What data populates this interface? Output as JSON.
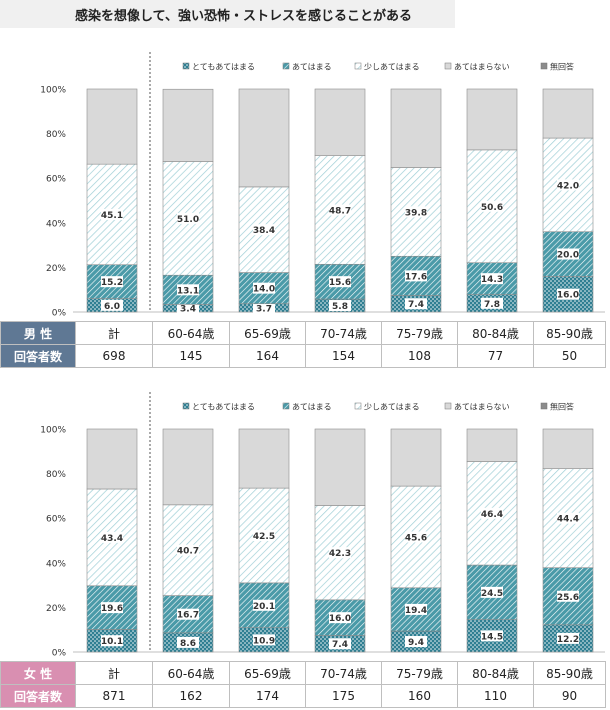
{
  "title": "感染を想像して、強い恐怖・ストレスを感じることがある",
  "legend": [
    {
      "label": "とてもあてはまる",
      "color": "#2f7f92",
      "pattern": "dots"
    },
    {
      "label": "あてはまる",
      "color": "#4a9aa8",
      "pattern": "dense-hatch"
    },
    {
      "label": "少しあてはまる",
      "color": "#9fcfd6",
      "pattern": "light-hatch"
    },
    {
      "label": "あてはまらない",
      "color": "#d9d9d9",
      "pattern": "solid"
    },
    {
      "label": "無回答",
      "color": "#8c8c8c",
      "pattern": "solid"
    }
  ],
  "chart_data": [
    {
      "type": "bar",
      "stacked": true,
      "group": "男 性",
      "categories": [
        "計",
        "60-64歳",
        "65-69歳",
        "70-74歳",
        "75-79歳",
        "80-84歳",
        "85-90歳"
      ],
      "y_ticks": [
        "0%",
        "20%",
        "40%",
        "60%",
        "80%",
        "100%"
      ],
      "ylim": [
        0,
        100
      ],
      "series": [
        {
          "name": "とてもあてはまる",
          "values": [
            6.0,
            3.4,
            3.7,
            5.8,
            7.4,
            7.8,
            16.0
          ]
        },
        {
          "name": "あてはまる",
          "values": [
            15.2,
            13.1,
            14.0,
            15.6,
            17.6,
            14.3,
            20.0
          ]
        },
        {
          "name": "少しあてはまる",
          "values": [
            45.1,
            51.0,
            38.4,
            48.7,
            39.8,
            50.6,
            42.0
          ]
        },
        {
          "name": "あてはまらない",
          "values": [
            33.7,
            32.4,
            43.9,
            29.9,
            35.2,
            27.3,
            22.0
          ]
        },
        {
          "name": "無回答",
          "values": [
            0,
            0,
            0,
            0,
            0,
            0,
            0
          ]
        }
      ],
      "respondents_label": "回答者数",
      "respondents": [
        "698",
        "145",
        "164",
        "154",
        "108",
        "77",
        "50"
      ]
    },
    {
      "type": "bar",
      "stacked": true,
      "group": "女 性",
      "categories": [
        "計",
        "60-64歳",
        "65-69歳",
        "70-74歳",
        "75-79歳",
        "80-84歳",
        "85-90歳"
      ],
      "y_ticks": [
        "0%",
        "20%",
        "40%",
        "60%",
        "80%",
        "100%"
      ],
      "ylim": [
        0,
        100
      ],
      "series": [
        {
          "name": "とてもあてはまる",
          "values": [
            10.1,
            8.6,
            10.9,
            7.4,
            9.4,
            14.5,
            12.2
          ]
        },
        {
          "name": "あてはまる",
          "values": [
            19.6,
            16.7,
            20.1,
            16.0,
            19.4,
            24.5,
            25.6
          ]
        },
        {
          "name": "少しあてはまる",
          "values": [
            43.4,
            40.7,
            42.5,
            42.3,
            45.6,
            46.4,
            44.4
          ]
        },
        {
          "name": "あてはまらない",
          "values": [
            26.9,
            34.0,
            26.5,
            34.3,
            25.6,
            14.6,
            17.8
          ]
        },
        {
          "name": "無回答",
          "values": [
            0,
            0,
            0,
            0,
            0,
            0,
            0
          ]
        }
      ],
      "respondents_label": "回答者数",
      "respondents": [
        "871",
        "162",
        "174",
        "175",
        "160",
        "110",
        "90"
      ]
    }
  ]
}
